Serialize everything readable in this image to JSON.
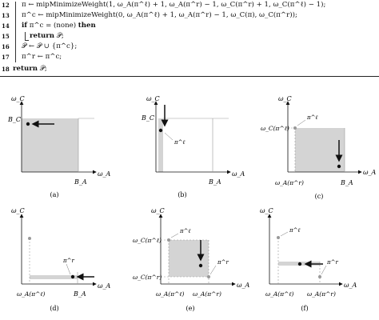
{
  "algorithm": {
    "lines": [
      {
        "num": "12",
        "indent": 1,
        "text": "π ← mipMinimizeWeight(1, ω_A(π^ℓ) + 1, ω_A(π^r) − 1, ω_C(π^r) + 1, ω_C(π^ℓ) − 1);"
      },
      {
        "num": "13",
        "indent": 1,
        "text": "π^c ← mipMinimizeWeight(0, ω_A(π^ℓ) + 1, ω_A(π^r) − 1, ω_C(π), ω_C(π^r));"
      },
      {
        "num": "14",
        "indent": 1,
        "kw_pre": "if",
        "text": " π^c = (none) ",
        "kw_post": "then"
      },
      {
        "num": "15",
        "indent": 2,
        "kw_pre": "return",
        "text": " 𝒫;"
      },
      {
        "num": "16",
        "indent": 1,
        "text": "𝒫 ← 𝒫 ∪ {π^c};"
      },
      {
        "num": "17",
        "indent": 1,
        "text": "π^r ← π^c;"
      },
      {
        "num": "18",
        "indent": 0,
        "kw_pre": "return",
        "text": " 𝒫;"
      }
    ]
  },
  "panels": [
    {
      "id": "a",
      "caption": "(a)",
      "ylabel": "ω_C",
      "xlabel": "ω_A",
      "ytick": "B_C",
      "xtick": "B_A"
    },
    {
      "id": "b",
      "caption": "(b)",
      "ylabel": "ω_C",
      "xlabel": "ω_A",
      "ytick": "B_C",
      "xtick": "B_A",
      "point_label": "π^ℓ"
    },
    {
      "id": "c",
      "caption": "(c)",
      "ylabel": "ω_C",
      "xlabel": "ω_A",
      "ytick": "ω_C(π^ℓ)",
      "xtick1": "ω_A(π^r)",
      "xtick2": "B_A",
      "point_label": "π^ℓ"
    },
    {
      "id": "d",
      "caption": "(d)",
      "ylabel": "ω_C",
      "xlabel": "ω_A",
      "xtick1": "ω_A(π^ℓ)",
      "xtick2": "B_A",
      "point_label": "π^r"
    },
    {
      "id": "e",
      "caption": "(e)",
      "ylabel": "ω_C",
      "xlabel": "ω_A",
      "ytick1": "ω_C(π^ℓ)",
      "ytick2": "ω_C(π^r)",
      "xtick1": "ω_A(π^ℓ)",
      "xtick2": "ω_A(π^r)",
      "point_label1": "π^ℓ",
      "point_label2": "π^r"
    },
    {
      "id": "f",
      "caption": "(f)",
      "ylabel": "ω_C",
      "xlabel": "ω_A",
      "xtick1": "ω_A(π^ℓ)",
      "xtick2": "ω_A(π^r)",
      "point_label1": "π^ℓ",
      "point_label2": "π^r"
    }
  ]
}
